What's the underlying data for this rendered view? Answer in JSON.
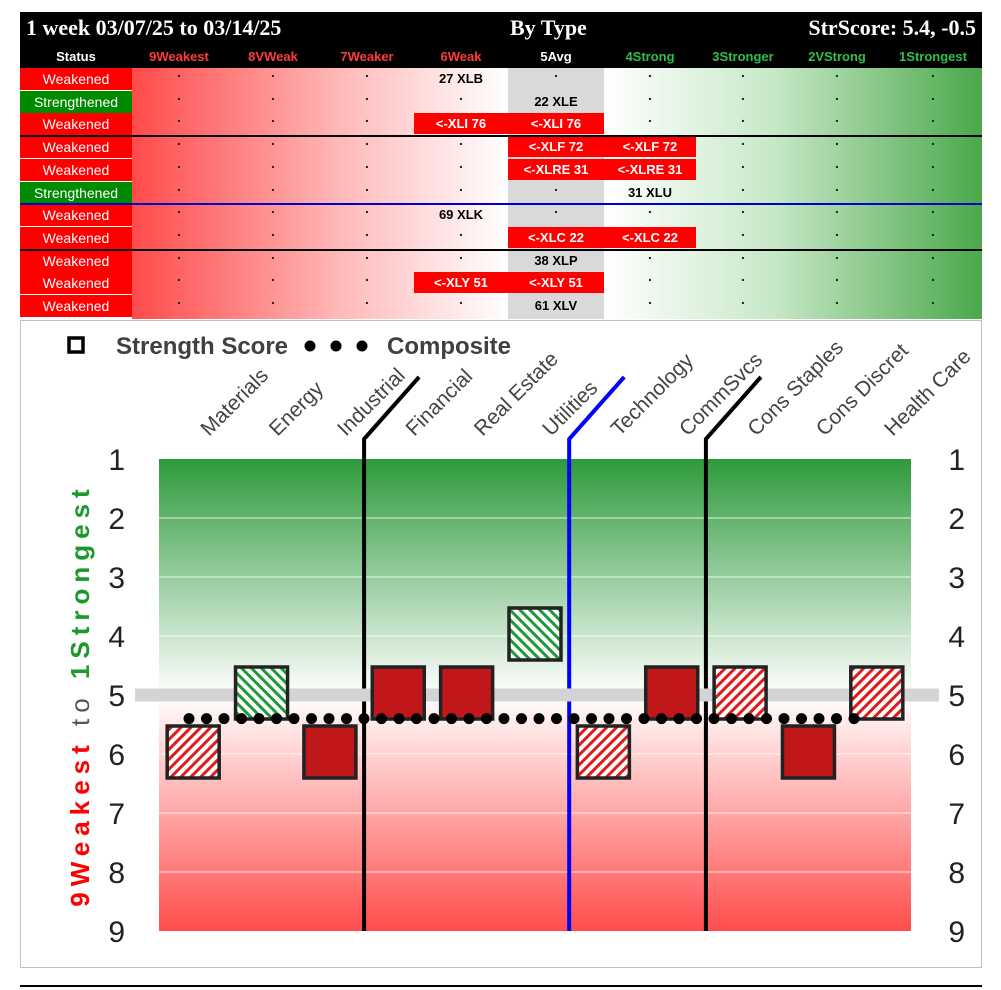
{
  "header": {
    "period": "1 week 03/07/25 to 03/14/25",
    "mode": "By Type",
    "score": "StrScore: 5.4, -0.5"
  },
  "table": {
    "status_header": "Status",
    "columns": [
      {
        "label": "9Weakest",
        "color": "#ff3b3b"
      },
      {
        "label": "8VWeak",
        "color": "#ff3b3b"
      },
      {
        "label": "7Weaker",
        "color": "#ff3b3b"
      },
      {
        "label": "6Weak",
        "color": "#ff3b3b"
      },
      {
        "label": "5Avg",
        "color": "#ffffff"
      },
      {
        "label": "4Strong",
        "color": "#2fbf4a"
      },
      {
        "label": "3Stronger",
        "color": "#2fbf4a"
      },
      {
        "label": "2VStrong",
        "color": "#2fbf4a"
      },
      {
        "label": "1Strongest",
        "color": "#2fbf4a"
      }
    ],
    "rows": [
      {
        "status": "Weakened",
        "cells": {
          "3": "27 XLB"
        }
      },
      {
        "status": "Strengthened",
        "cells": {
          "4": "22 XLE"
        }
      },
      {
        "status": "Weakened",
        "cells": {
          "3": "<-XLI 76",
          "4": "<-XLI 76"
        },
        "red": [
          3,
          4
        ]
      },
      {
        "status": "Weakened",
        "cells": {
          "4": "<-XLF 72",
          "5": "<-XLF 72"
        },
        "red": [
          4,
          5
        ]
      },
      {
        "status": "Weakened",
        "cells": {
          "4": "<-XLRE 31",
          "5": "<-XLRE 31"
        },
        "red": [
          4,
          5
        ]
      },
      {
        "status": "Strengthened",
        "cells": {
          "5": "31 XLU"
        }
      },
      {
        "status": "Weakened",
        "cells": {
          "3": "69 XLK"
        }
      },
      {
        "status": "Weakened",
        "cells": {
          "4": "<-XLC 22",
          "5": "<-XLC 22"
        },
        "red": [
          4,
          5
        ]
      },
      {
        "status": "Weakened",
        "cells": {
          "4": "38 XLP"
        }
      },
      {
        "status": "Weakened",
        "cells": {
          "3": "<-XLY 51",
          "4": "<-XLY 51"
        },
        "red": [
          3,
          4
        ]
      },
      {
        "status": "Weakened",
        "cells": {
          "4": "61 XLV"
        }
      }
    ],
    "dot_char": ".",
    "weakened_color": "#ff0000",
    "strengthened_color": "#008a00"
  },
  "chart_data": {
    "type": "scatter",
    "legend": {
      "strength": "Strength Score",
      "composite": "Composite"
    },
    "categories": [
      "Materials",
      "Energy",
      "Industrial",
      "Financial",
      "Real Estate",
      "Utilities",
      "Technology",
      "CommSvcs",
      "Cons Staples",
      "Cons Discret",
      "Health Care"
    ],
    "strength_score": [
      6,
      5,
      6,
      5,
      5,
      4,
      6,
      5,
      5,
      6,
      5
    ],
    "style": [
      "hatch-red",
      "hatch-green",
      "solid",
      "solid",
      "solid",
      "hatch-green",
      "hatch-red",
      "solid",
      "hatch-red",
      "solid",
      "hatch-red"
    ],
    "composite": 5.4,
    "reference": 5,
    "ylim": [
      9,
      1
    ],
    "yticks": [
      "1",
      "2",
      "3",
      "4",
      "5",
      "6",
      "7",
      "8",
      "9"
    ],
    "ylabel_weak": "9Weakest",
    "ylabel_to": "to",
    "ylabel_strong": "1Strongest",
    "dividers": [
      {
        "after": 2,
        "color": "#000000"
      },
      {
        "after": 5,
        "color": "#0000ff"
      },
      {
        "after": 7,
        "color": "#000000"
      }
    ],
    "colors": {
      "strong": "#2e9a3c",
      "weak": "#ff4d4d",
      "box": "#c0171b",
      "hatch_green": "#1f9a3a",
      "hatch_red": "#e01b1b"
    }
  }
}
